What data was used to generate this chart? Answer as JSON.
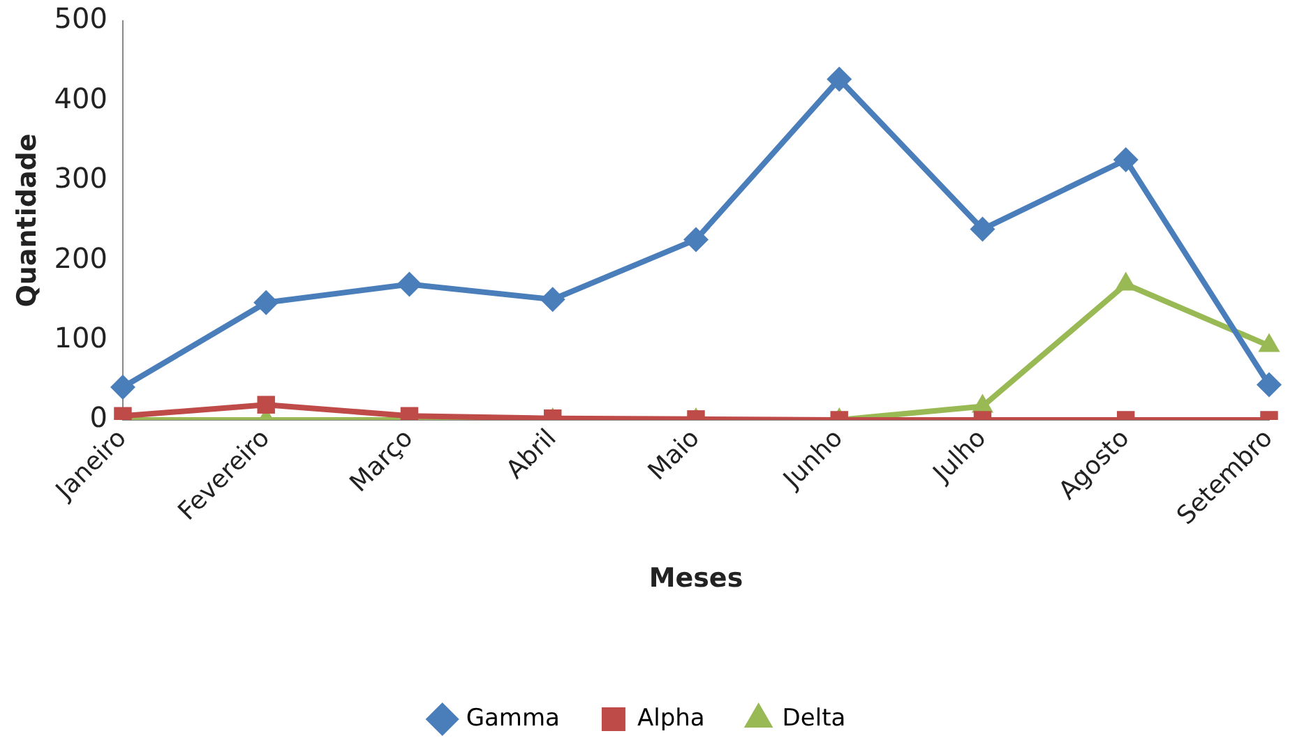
{
  "chart_data": {
    "type": "line",
    "xlabel": "Meses",
    "ylabel": "Quantidade",
    "categories": [
      "Janeiro",
      "Fevereiro",
      "Março",
      "Abril",
      "Maio",
      "Junho",
      "Julho",
      "Agosto",
      "Setembro"
    ],
    "series": [
      {
        "name": "Gamma",
        "color": "#4a7ebb",
        "marker": "diamond",
        "values": [
          41,
          147,
          170,
          151,
          226,
          427,
          239,
          326,
          44
        ]
      },
      {
        "name": "Alpha",
        "color": "#be4b48",
        "marker": "square",
        "values": [
          5,
          19,
          5,
          2,
          1,
          0,
          0,
          0,
          0
        ]
      },
      {
        "name": "Delta",
        "color": "#98b954",
        "marker": "triangle",
        "values": [
          0,
          0,
          0,
          0,
          0,
          0,
          17,
          170,
          93
        ]
      }
    ],
    "ylim": [
      0,
      500
    ],
    "yticks": [
      0,
      100,
      200,
      300,
      400,
      500
    ],
    "grid": false,
    "legend": "bottom"
  }
}
